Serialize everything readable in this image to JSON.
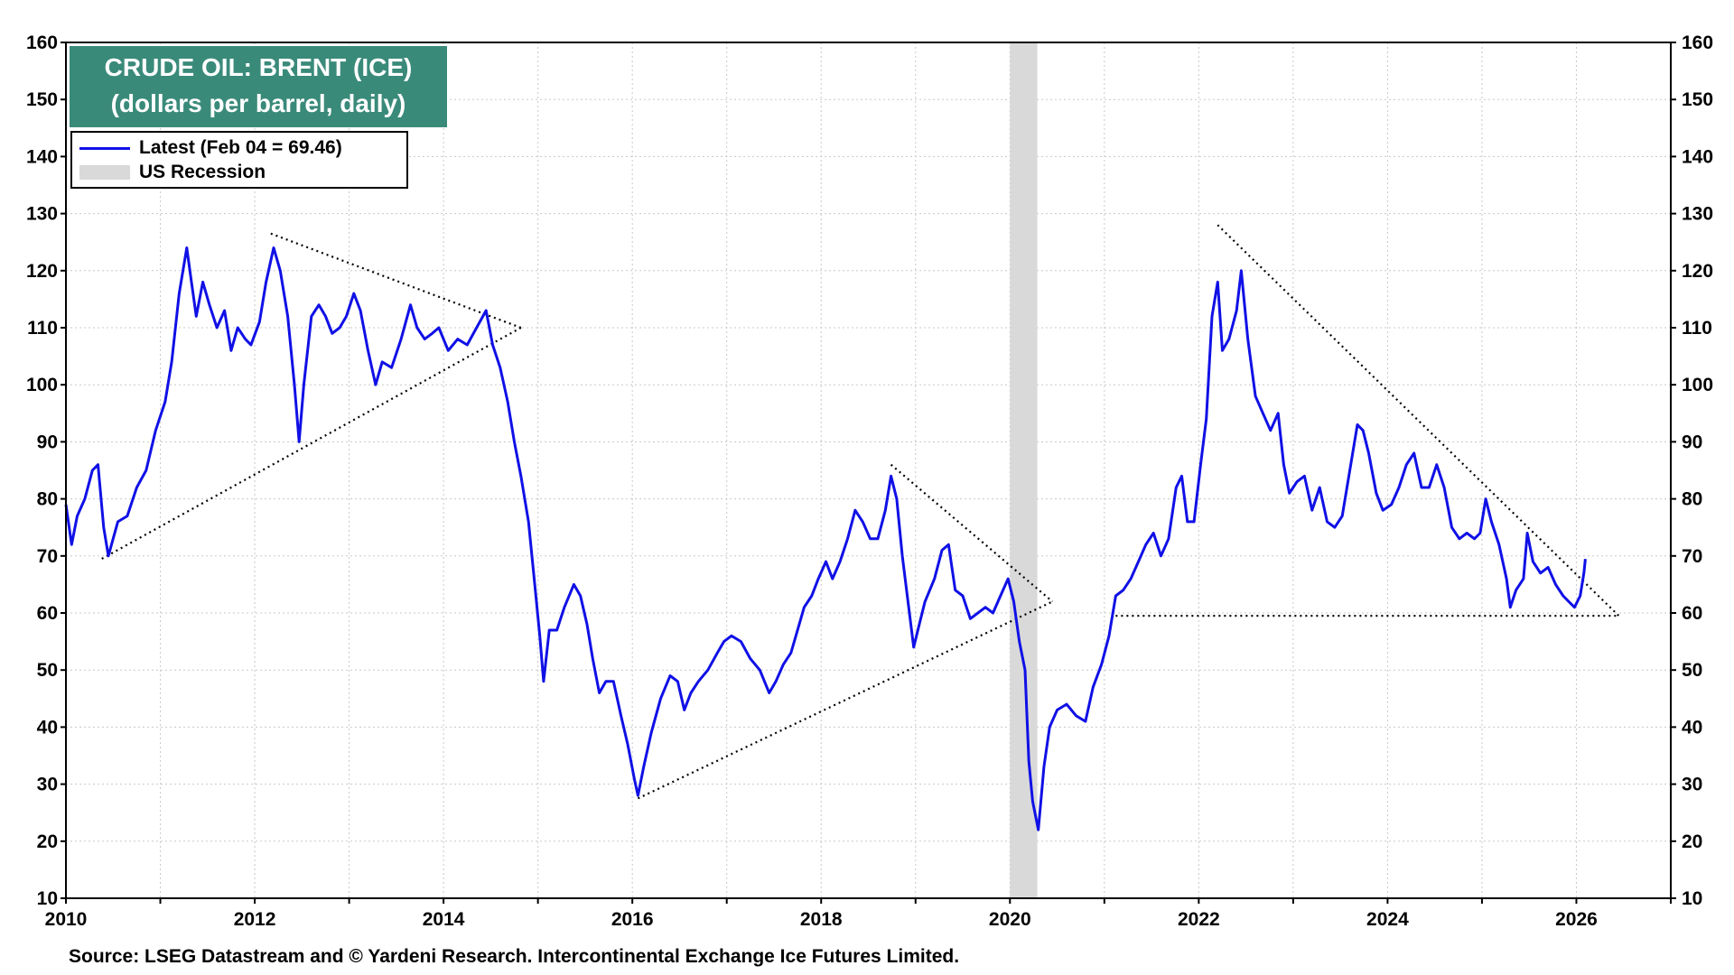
{
  "title": {
    "line1": "CRUDE OIL: BRENT (ICE)",
    "line2": "(dollars per barrel, daily)"
  },
  "legend": {
    "latest": "Latest (Feb 04 = 69.46)",
    "recession": "US Recession"
  },
  "source": "Source: LSEG Datastream and © Yardeni Research. Intercontinental Exchange Ice Futures Limited.",
  "colors": {
    "series": "#1010e6",
    "title_bg": "#3a8a7a",
    "recession": "#d9d9d9",
    "grid": "#c8c8c8"
  },
  "chart_data": {
    "type": "line",
    "title": "CRUDE OIL: BRENT (ICE)",
    "subtitle": "(dollars per barrel, daily)",
    "xlim": [
      2010.0,
      2027.0
    ],
    "ylim": [
      10,
      160
    ],
    "x_ticks": [
      2010,
      2012,
      2014,
      2016,
      2018,
      2020,
      2022,
      2024,
      2026
    ],
    "y_ticks": [
      10,
      20,
      30,
      40,
      50,
      60,
      70,
      80,
      90,
      100,
      110,
      120,
      130,
      140,
      150,
      160
    ],
    "grid": true,
    "legend_position": "top-left",
    "recessions": [
      [
        2020.0,
        2020.29
      ]
    ],
    "series": [
      {
        "name": "Latest (Feb 04 = 69.46)",
        "points": [
          [
            2010.0,
            79
          ],
          [
            2010.06,
            72
          ],
          [
            2010.12,
            77
          ],
          [
            2010.2,
            80
          ],
          [
            2010.28,
            85
          ],
          [
            2010.34,
            86
          ],
          [
            2010.4,
            75
          ],
          [
            2010.45,
            70
          ],
          [
            2010.55,
            76
          ],
          [
            2010.65,
            77
          ],
          [
            2010.75,
            82
          ],
          [
            2010.85,
            85
          ],
          [
            2010.95,
            92
          ],
          [
            2011.05,
            97
          ],
          [
            2011.12,
            104
          ],
          [
            2011.2,
            116
          ],
          [
            2011.28,
            124
          ],
          [
            2011.33,
            118
          ],
          [
            2011.38,
            112
          ],
          [
            2011.45,
            118
          ],
          [
            2011.52,
            114
          ],
          [
            2011.6,
            110
          ],
          [
            2011.68,
            113
          ],
          [
            2011.75,
            106
          ],
          [
            2011.82,
            110
          ],
          [
            2011.9,
            108
          ],
          [
            2011.96,
            107
          ],
          [
            2012.05,
            111
          ],
          [
            2012.12,
            118
          ],
          [
            2012.2,
            124
          ],
          [
            2012.27,
            120
          ],
          [
            2012.35,
            112
          ],
          [
            2012.42,
            100
          ],
          [
            2012.47,
            90
          ],
          [
            2012.52,
            100
          ],
          [
            2012.6,
            112
          ],
          [
            2012.68,
            114
          ],
          [
            2012.75,
            112
          ],
          [
            2012.82,
            109
          ],
          [
            2012.9,
            110
          ],
          [
            2012.97,
            112
          ],
          [
            2013.05,
            116
          ],
          [
            2013.12,
            113
          ],
          [
            2013.2,
            106
          ],
          [
            2013.28,
            100
          ],
          [
            2013.35,
            104
          ],
          [
            2013.45,
            103
          ],
          [
            2013.55,
            108
          ],
          [
            2013.65,
            114
          ],
          [
            2013.72,
            110
          ],
          [
            2013.8,
            108
          ],
          [
            2013.88,
            109
          ],
          [
            2013.95,
            110
          ],
          [
            2014.05,
            106
          ],
          [
            2014.15,
            108
          ],
          [
            2014.25,
            107
          ],
          [
            2014.35,
            110
          ],
          [
            2014.45,
            113
          ],
          [
            2014.52,
            107
          ],
          [
            2014.6,
            103
          ],
          [
            2014.68,
            97
          ],
          [
            2014.75,
            90
          ],
          [
            2014.82,
            84
          ],
          [
            2014.9,
            76
          ],
          [
            2014.96,
            66
          ],
          [
            2015.02,
            56
          ],
          [
            2015.06,
            48
          ],
          [
            2015.12,
            57
          ],
          [
            2015.2,
            57
          ],
          [
            2015.28,
            61
          ],
          [
            2015.38,
            65
          ],
          [
            2015.45,
            63
          ],
          [
            2015.52,
            58
          ],
          [
            2015.58,
            52
          ],
          [
            2015.65,
            46
          ],
          [
            2015.72,
            48
          ],
          [
            2015.8,
            48
          ],
          [
            2015.88,
            42
          ],
          [
            2015.95,
            37
          ],
          [
            2016.02,
            31
          ],
          [
            2016.06,
            28
          ],
          [
            2016.12,
            33
          ],
          [
            2016.2,
            39
          ],
          [
            2016.3,
            45
          ],
          [
            2016.4,
            49
          ],
          [
            2016.48,
            48
          ],
          [
            2016.55,
            43
          ],
          [
            2016.62,
            46
          ],
          [
            2016.7,
            48
          ],
          [
            2016.8,
            50
          ],
          [
            2016.9,
            53
          ],
          [
            2016.97,
            55
          ],
          [
            2017.05,
            56
          ],
          [
            2017.15,
            55
          ],
          [
            2017.25,
            52
          ],
          [
            2017.35,
            50
          ],
          [
            2017.45,
            46
          ],
          [
            2017.52,
            48
          ],
          [
            2017.6,
            51
          ],
          [
            2017.68,
            53
          ],
          [
            2017.75,
            57
          ],
          [
            2017.82,
            61
          ],
          [
            2017.9,
            63
          ],
          [
            2017.97,
            66
          ],
          [
            2018.05,
            69
          ],
          [
            2018.12,
            66
          ],
          [
            2018.2,
            69
          ],
          [
            2018.28,
            73
          ],
          [
            2018.36,
            78
          ],
          [
            2018.44,
            76
          ],
          [
            2018.52,
            73
          ],
          [
            2018.6,
            73
          ],
          [
            2018.68,
            78
          ],
          [
            2018.74,
            84
          ],
          [
            2018.8,
            80
          ],
          [
            2018.86,
            70
          ],
          [
            2018.92,
            62
          ],
          [
            2018.98,
            54
          ],
          [
            2019.04,
            58
          ],
          [
            2019.1,
            62
          ],
          [
            2019.2,
            66
          ],
          [
            2019.28,
            71
          ],
          [
            2019.35,
            72
          ],
          [
            2019.42,
            64
          ],
          [
            2019.5,
            63
          ],
          [
            2019.58,
            59
          ],
          [
            2019.66,
            60
          ],
          [
            2019.74,
            61
          ],
          [
            2019.82,
            60
          ],
          [
            2019.9,
            63
          ],
          [
            2019.98,
            66
          ],
          [
            2020.04,
            62
          ],
          [
            2020.1,
            55
          ],
          [
            2020.16,
            50
          ],
          [
            2020.2,
            34
          ],
          [
            2020.24,
            27
          ],
          [
            2020.3,
            22
          ],
          [
            2020.36,
            33
          ],
          [
            2020.42,
            40
          ],
          [
            2020.5,
            43
          ],
          [
            2020.6,
            44
          ],
          [
            2020.7,
            42
          ],
          [
            2020.8,
            41
          ],
          [
            2020.88,
            47
          ],
          [
            2020.97,
            51
          ],
          [
            2021.05,
            56
          ],
          [
            2021.12,
            63
          ],
          [
            2021.2,
            64
          ],
          [
            2021.28,
            66
          ],
          [
            2021.36,
            69
          ],
          [
            2021.44,
            72
          ],
          [
            2021.52,
            74
          ],
          [
            2021.6,
            70
          ],
          [
            2021.68,
            73
          ],
          [
            2021.76,
            82
          ],
          [
            2021.82,
            84
          ],
          [
            2021.88,
            76
          ],
          [
            2021.95,
            76
          ],
          [
            2022.02,
            86
          ],
          [
            2022.08,
            94
          ],
          [
            2022.14,
            112
          ],
          [
            2022.2,
            118
          ],
          [
            2022.25,
            106
          ],
          [
            2022.32,
            108
          ],
          [
            2022.4,
            113
          ],
          [
            2022.45,
            120
          ],
          [
            2022.52,
            108
          ],
          [
            2022.6,
            98
          ],
          [
            2022.68,
            95
          ],
          [
            2022.76,
            92
          ],
          [
            2022.84,
            95
          ],
          [
            2022.9,
            86
          ],
          [
            2022.96,
            81
          ],
          [
            2023.04,
            83
          ],
          [
            2023.12,
            84
          ],
          [
            2023.2,
            78
          ],
          [
            2023.28,
            82
          ],
          [
            2023.36,
            76
          ],
          [
            2023.44,
            75
          ],
          [
            2023.52,
            77
          ],
          [
            2023.6,
            85
          ],
          [
            2023.68,
            93
          ],
          [
            2023.74,
            92
          ],
          [
            2023.8,
            88
          ],
          [
            2023.88,
            81
          ],
          [
            2023.95,
            78
          ],
          [
            2024.04,
            79
          ],
          [
            2024.12,
            82
          ],
          [
            2024.2,
            86
          ],
          [
            2024.28,
            88
          ],
          [
            2024.36,
            82
          ],
          [
            2024.44,
            82
          ],
          [
            2024.52,
            86
          ],
          [
            2024.6,
            82
          ],
          [
            2024.68,
            75
          ],
          [
            2024.76,
            73
          ],
          [
            2024.84,
            74
          ],
          [
            2024.92,
            73
          ],
          [
            2024.98,
            74
          ],
          [
            2025.04,
            80
          ],
          [
            2025.1,
            76
          ],
          [
            2025.18,
            72
          ],
          [
            2025.26,
            66
          ],
          [
            2025.3,
            61
          ],
          [
            2025.36,
            64
          ],
          [
            2025.44,
            66
          ],
          [
            2025.48,
            74
          ],
          [
            2025.54,
            69
          ],
          [
            2025.62,
            67
          ],
          [
            2025.7,
            68
          ],
          [
            2025.78,
            65
          ],
          [
            2025.86,
            63
          ],
          [
            2025.92,
            62
          ],
          [
            2025.98,
            61
          ],
          [
            2026.04,
            63
          ],
          [
            2026.08,
            67
          ],
          [
            2026.095,
            69.46
          ]
        ]
      }
    ],
    "trendlines": [
      [
        [
          2010.38,
          69.5
        ],
        [
          2014.82,
          110
        ]
      ],
      [
        [
          2012.17,
          126.5
        ],
        [
          2014.82,
          110
        ]
      ],
      [
        [
          2016.06,
          27.5
        ],
        [
          2020.45,
          62
        ]
      ],
      [
        [
          2018.74,
          86
        ],
        [
          2020.45,
          62
        ]
      ],
      [
        [
          2021.12,
          59.5
        ],
        [
          2026.45,
          59.5
        ]
      ],
      [
        [
          2022.2,
          128
        ],
        [
          2026.45,
          59.5
        ]
      ]
    ]
  }
}
